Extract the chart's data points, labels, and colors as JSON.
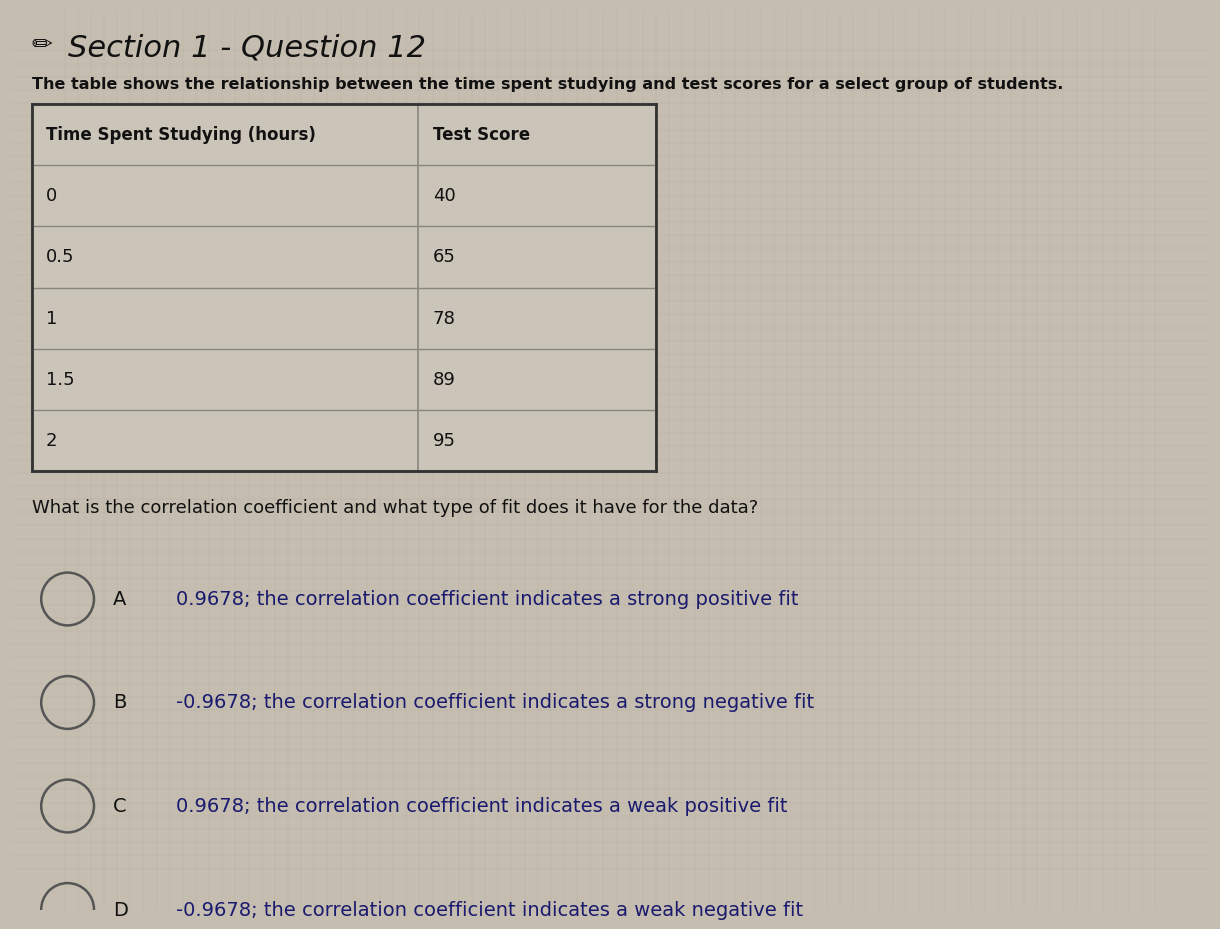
{
  "title": "• Section 1 - Question 12",
  "description": "The table shows the relationship between the time spent studying and test scores for a select group of students.",
  "col1_header": "Time Spent Studying (hours)",
  "col2_header": "Test Score",
  "table_data": [
    [
      "0",
      "40"
    ],
    [
      "0.5",
      "65"
    ],
    [
      "1",
      "78"
    ],
    [
      "1.5",
      "89"
    ],
    [
      "2",
      "95"
    ]
  ],
  "question": "What is the correlation coefficient and what type of fit does it have for the data?",
  "options": [
    [
      "A",
      "0.9678; the correlation coefficient indicates a strong positive fit"
    ],
    [
      "B",
      "-0.9678; the correlation coefficient indicates a strong negative fit"
    ],
    [
      "C",
      "0.9678; the correlation coefficient indicates a weak positive fit"
    ],
    [
      "D",
      "-0.9678; the correlation coefficient indicates a weak negative fit"
    ]
  ],
  "bg_color": "#c4bdb0",
  "table_cell_color": "#cbc4b8",
  "text_color": "#1a1a6e",
  "title_color": "#111111",
  "desc_color": "#111111",
  "grid_color": "#888880",
  "fig_width": 12,
  "fig_height": 9,
  "title_fontsize": 22,
  "desc_fontsize": 11.5,
  "table_header_fontsize": 12,
  "table_data_fontsize": 13,
  "question_fontsize": 13,
  "option_fontsize": 14
}
